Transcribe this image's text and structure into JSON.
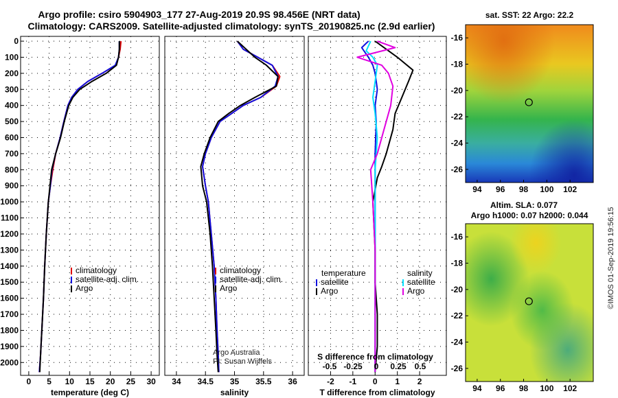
{
  "header": {
    "line1": "Argo profile: csiro 5904903_177 27-Aug-2019 20.9S 98.456E (NRT data)",
    "line2": "Climatology: CARS2009. Satellite-adjusted climatology: synTS_20190825.nc (2.9d earlier)"
  },
  "colors": {
    "climatology": "#e00000",
    "satellite": "#1010e0",
    "argo": "#000000",
    "satellite_s": "#00e0ff",
    "argo_s": "#e000e0"
  },
  "depth_ticks": [
    "0",
    "100",
    "200",
    "300",
    "400",
    "500",
    "600",
    "700",
    "800",
    "900",
    "1000",
    "1100",
    "1200",
    "1300",
    "1400",
    "1500",
    "1600",
    "1700",
    "1800",
    "1900",
    "2000"
  ],
  "chart_data": [
    {
      "type": "line",
      "xlabel": "temperature (deg C)",
      "xlim": [
        -2,
        32
      ],
      "ylim": [
        2080,
        -30
      ],
      "xticks": [
        "0",
        "5",
        "10",
        "15",
        "20",
        "25",
        "30"
      ],
      "legend": [
        "climatology",
        "satellite-adj. clim.",
        "Argo"
      ],
      "series": [
        {
          "name": "climatology",
          "color": "#e00000",
          "x": [
            22.6,
            22.4,
            22.0,
            21.3,
            18.0,
            14.5,
            12.0,
            10.5,
            9.6,
            8.6,
            7.7,
            6.6,
            5.9,
            5.3,
            4.8,
            4.3,
            3.9,
            3.6,
            3.2,
            2.9,
            2.6
          ],
          "y": [
            0,
            50,
            100,
            150,
            200,
            250,
            300,
            350,
            400,
            500,
            600,
            700,
            800,
            900,
            1000,
            1200,
            1400,
            1600,
            1800,
            1950,
            2060
          ]
        },
        {
          "name": "satellite-adj. clim.",
          "color": "#1010e0",
          "x": [
            22.2,
            22.2,
            22.0,
            21.2,
            18.0,
            14.5,
            12.0,
            10.5,
            9.6,
            8.6,
            7.7,
            6.6,
            5.7,
            5.3,
            4.8,
            4.3,
            3.9,
            3.6,
            3.2,
            2.9,
            2.6
          ],
          "y": [
            0,
            50,
            100,
            150,
            200,
            250,
            300,
            350,
            400,
            500,
            600,
            700,
            800,
            900,
            1000,
            1200,
            1400,
            1600,
            1800,
            1950,
            2060
          ]
        },
        {
          "name": "Argo",
          "color": "#000000",
          "x": [
            22.2,
            22.2,
            22.0,
            21.5,
            19.0,
            15.5,
            12.5,
            10.8,
            9.8,
            8.7,
            7.8,
            6.6,
            5.6,
            5.2,
            4.8,
            4.3,
            3.9,
            3.6,
            3.2,
            2.9,
            2.7
          ],
          "y": [
            0,
            50,
            100,
            150,
            200,
            250,
            300,
            350,
            400,
            500,
            600,
            700,
            800,
            900,
            1000,
            1200,
            1400,
            1600,
            1800,
            1950,
            2060
          ]
        }
      ]
    },
    {
      "type": "line",
      "xlabel": "salinity",
      "xlim": [
        33.8,
        36.2
      ],
      "ylim": [
        2080,
        -30
      ],
      "xticks": [
        "34",
        "34.5",
        "35",
        "35.5",
        "36"
      ],
      "legend": [
        "climatology",
        "satellite-adj. clim.",
        "Argo"
      ],
      "series": [
        {
          "name": "climatology",
          "color": "#e00000",
          "x": [
            35.05,
            35.15,
            35.4,
            35.65,
            35.78,
            35.72,
            35.45,
            35.15,
            34.95,
            34.75,
            34.6,
            34.5,
            34.45,
            34.5,
            34.55,
            34.6,
            34.65,
            34.68,
            34.7,
            34.72,
            34.73
          ],
          "y": [
            0,
            50,
            100,
            150,
            220,
            280,
            350,
            400,
            450,
            500,
            600,
            700,
            780,
            900,
            1000,
            1200,
            1400,
            1600,
            1800,
            1950,
            2060
          ]
        },
        {
          "name": "satellite-adj. clim.",
          "color": "#1010e0",
          "x": [
            35.05,
            35.15,
            35.4,
            35.65,
            35.75,
            35.7,
            35.45,
            35.15,
            34.95,
            34.75,
            34.6,
            34.5,
            34.45,
            34.5,
            34.55,
            34.6,
            34.65,
            34.68,
            34.7,
            34.72,
            34.73
          ],
          "y": [
            0,
            50,
            100,
            150,
            220,
            280,
            350,
            400,
            450,
            500,
            600,
            700,
            780,
            900,
            1000,
            1200,
            1400,
            1600,
            1800,
            1950,
            2060
          ]
        },
        {
          "name": "Argo",
          "color": "#000000",
          "x": [
            35.05,
            35.2,
            35.35,
            35.55,
            35.75,
            35.72,
            35.35,
            35.1,
            34.9,
            34.72,
            34.58,
            34.48,
            34.42,
            34.45,
            34.52,
            34.58,
            34.62,
            34.65,
            34.68,
            34.7,
            34.72
          ],
          "y": [
            0,
            50,
            100,
            150,
            220,
            280,
            350,
            400,
            450,
            500,
            600,
            700,
            780,
            900,
            1000,
            1200,
            1400,
            1600,
            1800,
            1950,
            2060
          ]
        }
      ],
      "credit": [
        "Argo Australia",
        "PI: Susan Wijffels"
      ]
    },
    {
      "type": "line",
      "xlabel": "T difference from climatology",
      "xlabel_top": "S difference from climatology",
      "xlim": [
        -3,
        3.2
      ],
      "ylim": [
        2080,
        -30
      ],
      "xticks": [
        "-2",
        "-1",
        "0",
        "1",
        "2"
      ],
      "xticks_top": [
        "-0.5",
        "-0.25",
        "0",
        "0.25",
        "0.5"
      ],
      "legend_t": [
        "temperature",
        "satellite",
        "Argo"
      ],
      "legend_s": [
        "salinity",
        "satellite",
        "Argo"
      ],
      "series": [
        {
          "name": "satellite",
          "color": "#1010e0",
          "x": [
            -0.3,
            -0.6,
            -0.3,
            -0.1,
            0.0,
            0.1,
            0.0,
            0.05,
            0.0,
            0.0,
            0.0,
            0.0,
            0.0,
            0.0,
            0.0
          ],
          "y": [
            0,
            40,
            100,
            150,
            200,
            300,
            400,
            500,
            700,
            900,
            1200,
            1500,
            1800,
            1950,
            2060
          ]
        },
        {
          "name": "Argo",
          "color": "#000000",
          "x": [
            0.0,
            0.5,
            1.0,
            1.7,
            1.5,
            1.2,
            0.9,
            0.8,
            0.5,
            0.3,
            0.1,
            -0.1,
            0.0,
            0.0,
            0.1,
            0.1,
            0.0
          ],
          "y": [
            0,
            50,
            100,
            180,
            250,
            350,
            450,
            550,
            700,
            780,
            850,
            1000,
            1300,
            1500,
            1700,
            1900,
            2060
          ]
        },
        {
          "name": "satellite",
          "color": "#00e0ff",
          "x": [
            -0.2,
            -0.4,
            -0.1,
            0.1,
            0.0,
            -0.1,
            0.0,
            0.1,
            0.0,
            0.0,
            0.0,
            0.0,
            0.0,
            0.0
          ],
          "y": [
            0,
            60,
            100,
            150,
            250,
            350,
            450,
            600,
            800,
            1000,
            1300,
            1600,
            1900,
            2060
          ]
        },
        {
          "name": "Argo",
          "color": "#e000e0",
          "x": [
            0.1,
            0.9,
            -0.8,
            0.3,
            0.6,
            0.8,
            0.7,
            0.4,
            0.1,
            -0.2,
            -0.1,
            0.0,
            0.0
          ],
          "y": [
            0,
            40,
            100,
            150,
            200,
            280,
            400,
            550,
            700,
            800,
            1000,
            1300,
            2060
          ]
        }
      ]
    }
  ],
  "map_sst": {
    "title": "sat. SST: 22 Argo: 22.2",
    "xticks": [
      "94",
      "96",
      "98",
      "100",
      "102"
    ],
    "yticks": [
      "-16",
      "-18",
      "-20",
      "-22",
      "-24",
      "-26"
    ],
    "xlim": [
      93,
      104
    ],
    "ylim": [
      -27,
      -15
    ],
    "argo_position": [
      98.456,
      -20.9
    ]
  },
  "map_sla": {
    "title_line1": "Altim. SLA: 0.077",
    "title_line2": "Argo h1000: 0.07 h2000: 0.044",
    "xticks": [
      "94",
      "96",
      "98",
      "100",
      "102"
    ],
    "yticks": [
      "-16",
      "-18",
      "-20",
      "-22",
      "-24",
      "-26"
    ],
    "xlim": [
      93,
      104
    ],
    "ylim": [
      -27,
      -15
    ],
    "argo_position": [
      98.456,
      -20.9
    ]
  },
  "footer": "©IMOS 01-Sep-2019 19:56:15"
}
